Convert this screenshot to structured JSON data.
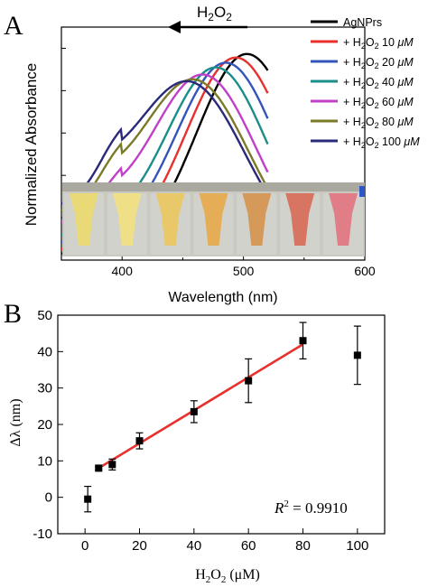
{
  "panels": {
    "a_label": "A",
    "b_label": "B"
  },
  "chart_data": [
    {
      "type": "line",
      "panel": "A",
      "xlabel": "Wavelength (nm)",
      "ylabel": "Normalized Absorbance",
      "xlim": [
        350,
        600
      ],
      "ylim": [
        0,
        1.1
      ],
      "xticks": [
        400,
        500,
        600
      ],
      "xtick_labels": [
        "400",
        "500",
        "600"
      ],
      "annotation": "H2O2",
      "annotation_arrow": "left",
      "legend_position": "top-right",
      "series": [
        {
          "name": "AgNPrs",
          "color": "#000000",
          "peak": 503,
          "width": 42,
          "base": 0.03
        },
        {
          "name": "+ H2O2 10 μM",
          "color": "#e8302c",
          "peak": 494,
          "width": 42,
          "base": 0.05
        },
        {
          "name": "+ H2O2 20 μM",
          "color": "#3355bb",
          "peak": 486,
          "width": 42,
          "base": 0.08
        },
        {
          "name": "+ H2O2 40 μM",
          "color": "#1b8e8a",
          "peak": 478,
          "width": 42,
          "base": 0.11
        },
        {
          "name": "+ H2O2 60 μM",
          "color": "#c040c8",
          "peak": 468,
          "width": 43,
          "base": 0.16
        },
        {
          "name": "+ H2O2 80 μM",
          "color": "#7a7a28",
          "peak": 461,
          "width": 44,
          "base": 0.2
        },
        {
          "name": "+ H2O2 100 μM",
          "color": "#2a2a7a",
          "peak": 457,
          "width": 45,
          "base": 0.22
        }
      ],
      "vial_colors": [
        "#e9d977",
        "#efe088",
        "#e9c86a",
        "#e6ad57",
        "#d59a59",
        "#d87462",
        "#e07d86"
      ]
    },
    {
      "type": "scatter",
      "panel": "B",
      "xlabel": "H2O2 (μM)",
      "ylabel": "Δλ (nm)",
      "xlim": [
        -10,
        110
      ],
      "ylim": [
        -10,
        50
      ],
      "xticks": [
        0,
        20,
        40,
        60,
        80,
        100
      ],
      "yticks": [
        -10,
        0,
        10,
        20,
        30,
        40,
        50
      ],
      "annotation": "R² = 0.9910",
      "points": [
        {
          "x": 1,
          "y": -0.5,
          "err": 3.5
        },
        {
          "x": 5,
          "y": 8,
          "err": 0.5
        },
        {
          "x": 10,
          "y": 9,
          "err": 1.5
        },
        {
          "x": 20,
          "y": 15.5,
          "err": 2.2
        },
        {
          "x": 40,
          "y": 23.5,
          "err": 3
        },
        {
          "x": 60,
          "y": 32,
          "err": 6
        },
        {
          "x": 80,
          "y": 43,
          "err": 5
        },
        {
          "x": 100,
          "y": 39,
          "err": 8
        }
      ],
      "fit": {
        "x": [
          5,
          80
        ],
        "y": [
          8,
          42
        ],
        "color": "#e8302c"
      }
    }
  ]
}
